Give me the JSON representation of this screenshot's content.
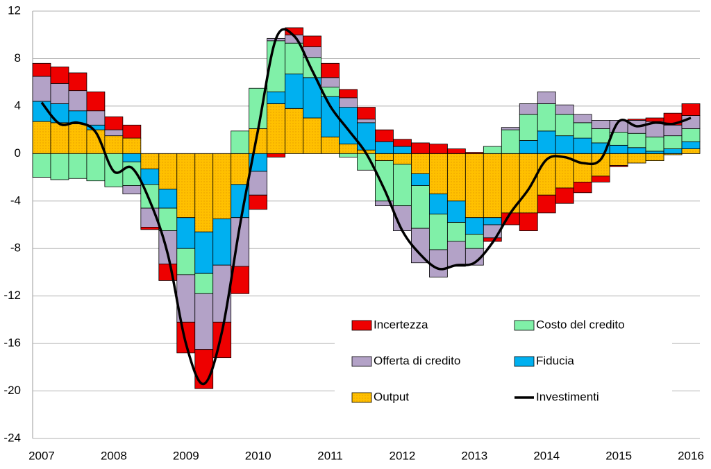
{
  "chart_data": {
    "type": "bar",
    "stacked": true,
    "categories": [
      "2007",
      null,
      null,
      null,
      "2008",
      null,
      null,
      null,
      "2009",
      null,
      null,
      null,
      "2010",
      null,
      null,
      null,
      "2011",
      null,
      null,
      null,
      "2012",
      null,
      null,
      null,
      "2013",
      null,
      null,
      null,
      "2014",
      null,
      null,
      null,
      "2015",
      null,
      null,
      null,
      "2016"
    ],
    "series": [
      {
        "name": "Output",
        "color": "#ffc000",
        "values": [
          2.7,
          2.6,
          2.5,
          2.0,
          1.5,
          1.3,
          -1.3,
          -3.0,
          -5.4,
          -6.6,
          -5.5,
          -2.6,
          2.1,
          4.2,
          3.8,
          3.0,
          1.4,
          0.8,
          0.3,
          -0.6,
          -0.9,
          -1.7,
          -3.4,
          -4.0,
          -5.4,
          -5.4,
          -5.0,
          -5.0,
          -3.5,
          -2.9,
          -2.4,
          -1.9,
          -1.0,
          -0.8,
          -0.6,
          -0.1,
          0.4
        ]
      },
      {
        "name": "Fiducia",
        "color": "#00b0f0",
        "values": [
          1.7,
          1.6,
          1.1,
          0.4,
          0.0,
          -0.7,
          -1.3,
          -1.6,
          -2.6,
          -3.5,
          -3.9,
          -2.8,
          -1.5,
          1.0,
          2.9,
          3.4,
          3.4,
          3.1,
          2.3,
          1.0,
          0.6,
          -1.0,
          -1.7,
          -1.8,
          -1.4,
          -0.6,
          0.0,
          1.1,
          1.9,
          1.5,
          1.3,
          0.9,
          0.7,
          0.5,
          0.2,
          0.4,
          0.6
        ]
      },
      {
        "name": "Costo del credito",
        "color": "#80f0a8",
        "values": [
          -2.0,
          -2.2,
          -2.1,
          -2.3,
          -2.8,
          -2.0,
          -2.0,
          -1.9,
          -2.2,
          -1.7,
          0.0,
          1.9,
          3.4,
          4.3,
          2.6,
          1.7,
          0.8,
          -0.3,
          -1.4,
          -3.4,
          -3.5,
          -3.6,
          -3.0,
          -1.6,
          -1.2,
          0.6,
          2.0,
          2.2,
          2.3,
          1.8,
          1.3,
          1.2,
          1.1,
          1.2,
          1.2,
          1.1,
          1.1
        ]
      },
      {
        "name": "Offerta di credito",
        "color": "#b3a2c7",
        "values": [
          2.1,
          1.7,
          1.7,
          1.2,
          0.5,
          -0.7,
          -1.6,
          -2.8,
          -4.0,
          -4.7,
          -4.8,
          -4.1,
          -2.0,
          0.2,
          0.7,
          0.9,
          0.8,
          0.8,
          0.3,
          -0.4,
          -2.1,
          -2.9,
          -2.3,
          -2.1,
          -1.4,
          -1.1,
          0.2,
          0.9,
          1.0,
          0.8,
          0.7,
          0.7,
          1.0,
          1.1,
          1.3,
          0.9,
          1.1
        ]
      },
      {
        "name": "Incertezza",
        "color": "#ee0000",
        "values": [
          1.1,
          1.4,
          1.5,
          1.6,
          1.1,
          1.1,
          -0.2,
          -1.4,
          -2.6,
          -3.3,
          -3.0,
          -2.3,
          -1.2,
          -0.3,
          0.6,
          0.9,
          1.2,
          0.7,
          1.0,
          1.0,
          0.6,
          0.9,
          0.8,
          0.4,
          0.1,
          -0.3,
          -1.0,
          -1.5,
          -1.5,
          -1.3,
          -0.9,
          -0.5,
          -0.1,
          0.1,
          0.3,
          1.0,
          1.0
        ]
      }
    ],
    "line": {
      "name": "Investimenti",
      "color": "#000000",
      "values": [
        4.3,
        2.5,
        2.6,
        1.8,
        -1.5,
        -1.2,
        -4.0,
        -8.5,
        -16.0,
        -19.4,
        -15.0,
        -6.0,
        2.0,
        9.7,
        9.9,
        7.0,
        4.0,
        2.0,
        0.0,
        -3.0,
        -6.5,
        -8.5,
        -9.7,
        -9.4,
        -9.2,
        -7.5,
        -5.0,
        -3.0,
        -0.5,
        -0.3,
        -0.8,
        -0.5,
        2.7,
        2.3,
        2.6,
        2.5,
        3.0
      ]
    },
    "ylim": [
      -24,
      12
    ],
    "yticks": [
      -24,
      -20,
      -16,
      -12,
      -8,
      -4,
      0,
      4,
      8,
      12
    ],
    "grid": true
  }
}
